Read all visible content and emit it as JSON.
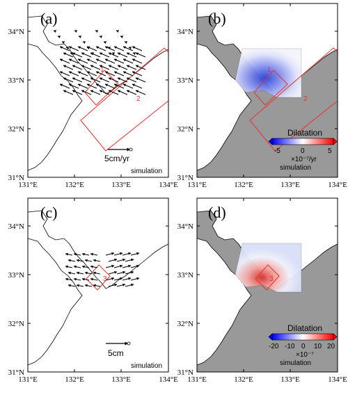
{
  "axes": {
    "lat_labels": [
      "34°N",
      "33°N",
      "32°N",
      "31°N"
    ],
    "lon_labels": [
      "131°E",
      "132°E",
      "133°E",
      "134°E"
    ]
  },
  "panels": [
    {
      "label": "(a)",
      "type": "vectors",
      "scale_label": "5cm/yr",
      "footer": "simulation",
      "segment_labels": [
        "1",
        "2"
      ]
    },
    {
      "label": "(b)",
      "type": "dilatation",
      "colorbar_title": "Dilatation",
      "colorbar_ticks": [
        "-5",
        "0",
        "5"
      ],
      "colorbar_unit": "×10⁻⁷/yr",
      "footer": "simulation",
      "segment_labels": [
        "1",
        "2"
      ]
    },
    {
      "label": "(c)",
      "type": "vectors",
      "scale_label": "5cm",
      "footer": "simulation",
      "segment_labels": [
        "3"
      ]
    },
    {
      "label": "(d)",
      "type": "dilatation",
      "colorbar_title": "Dilatation",
      "colorbar_ticks": [
        "-20",
        "-10",
        "0",
        "10",
        "20"
      ],
      "colorbar_unit": "×10⁻⁷",
      "footer": "simulation",
      "segment_labels": [
        "3"
      ]
    }
  ],
  "colors": {
    "land_fill": "#ffffff",
    "sea_fill_dilatation": "#999999",
    "fault_outline": "#e8302e",
    "colormap": [
      "#0000ff",
      "#ffffff",
      "#ff0000"
    ]
  }
}
